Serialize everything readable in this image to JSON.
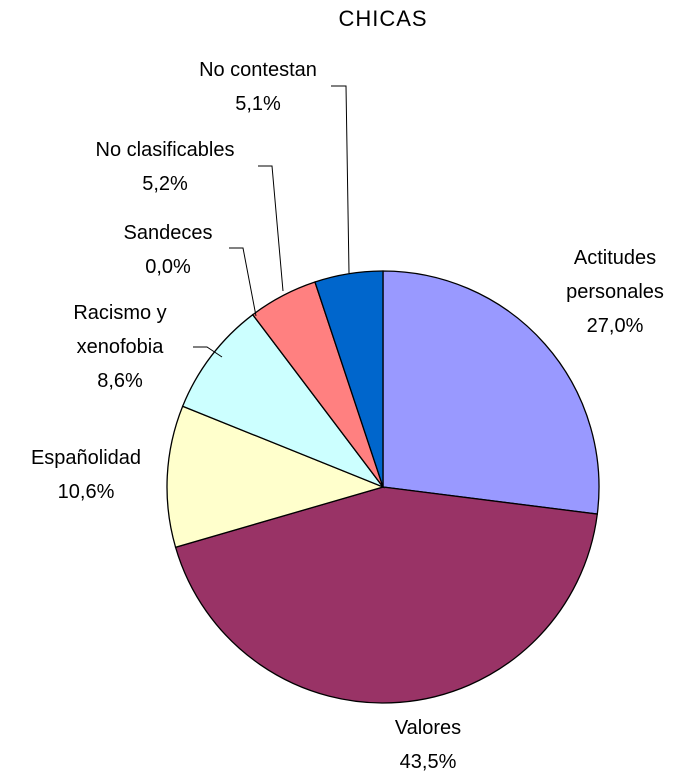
{
  "chart_data": {
    "type": "pie",
    "title": "CHICAS",
    "categories": [
      "Actitudes personales",
      "Valores",
      "Españolidad",
      "Racismo y xenofobia",
      "Sandeces",
      "No clasificables",
      "No contestan"
    ],
    "values": [
      27.0,
      43.5,
      10.6,
      8.6,
      0.0,
      5.2,
      5.1
    ],
    "value_labels": [
      "27,0%",
      "43,5%",
      "10,6%",
      "8,6%",
      "0,0%",
      "5,2%",
      "5,1%"
    ],
    "colors": [
      "#9999ff",
      "#993366",
      "#ffffcc",
      "#ccffff",
      "#ffffff",
      "#ff8080",
      "#0066cc"
    ]
  }
}
